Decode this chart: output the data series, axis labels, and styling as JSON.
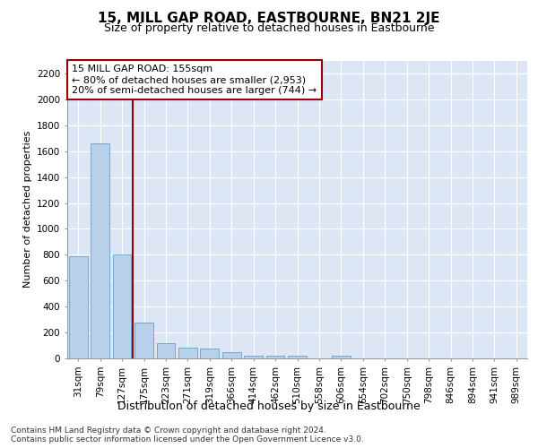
{
  "title": "15, MILL GAP ROAD, EASTBOURNE, BN21 2JE",
  "subtitle": "Size of property relative to detached houses in Eastbourne",
  "xlabel": "Distribution of detached houses by size in Eastbourne",
  "ylabel": "Number of detached properties",
  "categories": [
    "31sqm",
    "79sqm",
    "127sqm",
    "175sqm",
    "223sqm",
    "271sqm",
    "319sqm",
    "366sqm",
    "414sqm",
    "462sqm",
    "510sqm",
    "558sqm",
    "606sqm",
    "654sqm",
    "702sqm",
    "750sqm",
    "798sqm",
    "846sqm",
    "894sqm",
    "941sqm",
    "989sqm"
  ],
  "values": [
    790,
    1660,
    800,
    280,
    120,
    80,
    78,
    50,
    20,
    20,
    20,
    0,
    20,
    0,
    0,
    0,
    0,
    0,
    0,
    0,
    0
  ],
  "bar_color": "#b8d0ea",
  "bar_edge_color": "#6a9fc8",
  "vline_color": "#990000",
  "annotation_text": "15 MILL GAP ROAD: 155sqm\n← 80% of detached houses are smaller (2,953)\n20% of semi-detached houses are larger (744) →",
  "annotation_box_color": "#ffffff",
  "annotation_box_edge": "#990000",
  "ylim": [
    0,
    2300
  ],
  "yticks": [
    0,
    200,
    400,
    600,
    800,
    1000,
    1200,
    1400,
    1600,
    1800,
    2000,
    2200
  ],
  "plot_bg_color": "#dce6f5",
  "footer": "Contains HM Land Registry data © Crown copyright and database right 2024.\nContains public sector information licensed under the Open Government Licence v3.0.",
  "title_fontsize": 11,
  "subtitle_fontsize": 9,
  "xlabel_fontsize": 9,
  "ylabel_fontsize": 8,
  "tick_fontsize": 7.5,
  "footer_fontsize": 6.5,
  "ann_fontsize": 8
}
